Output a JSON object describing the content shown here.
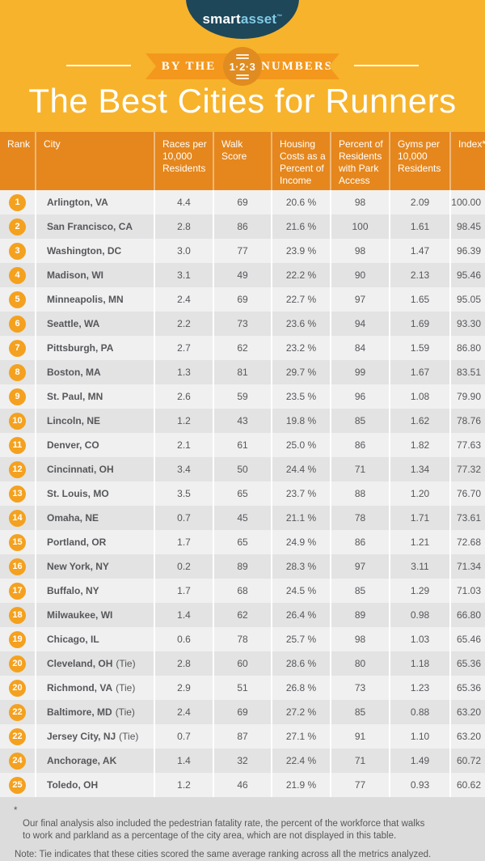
{
  "logo": {
    "smart": "smart",
    "asset": "asset",
    "tm": "™"
  },
  "banner": {
    "by_the": "BY THE",
    "numbers": "NUMBERS",
    "badge": "1·2·3"
  },
  "chart_data": {
    "type": "table",
    "title": "The Best Cities for Runners",
    "columns": [
      "Rank",
      "City",
      "Races per 10,000 Residents",
      "Walk Score",
      "Housing Costs as a Percent of Income",
      "Percent of Residents with Park Access",
      "Gyms per 10,000 Residents",
      "Index*"
    ],
    "rows": [
      {
        "rank": "1",
        "city": "Arlington, VA",
        "tie": "",
        "races": "4.4",
        "walk": "69",
        "housing": "20.6 %",
        "park": "98",
        "gyms": "2.09",
        "index": "100.00"
      },
      {
        "rank": "2",
        "city": "San Francisco, CA",
        "tie": "",
        "races": "2.8",
        "walk": "86",
        "housing": "21.6 %",
        "park": "100",
        "gyms": "1.61",
        "index": "98.45"
      },
      {
        "rank": "3",
        "city": "Washington, DC",
        "tie": "",
        "races": "3.0",
        "walk": "77",
        "housing": "23.9 %",
        "park": "98",
        "gyms": "1.47",
        "index": "96.39"
      },
      {
        "rank": "4",
        "city": "Madison, WI",
        "tie": "",
        "races": "3.1",
        "walk": "49",
        "housing": "22.2 %",
        "park": "90",
        "gyms": "2.13",
        "index": "95.46"
      },
      {
        "rank": "5",
        "city": "Minneapolis, MN",
        "tie": "",
        "races": "2.4",
        "walk": "69",
        "housing": "22.7 %",
        "park": "97",
        "gyms": "1.65",
        "index": "95.05"
      },
      {
        "rank": "6",
        "city": "Seattle, WA",
        "tie": "",
        "races": "2.2",
        "walk": "73",
        "housing": "23.6 %",
        "park": "94",
        "gyms": "1.69",
        "index": "93.30"
      },
      {
        "rank": "7",
        "city": "Pittsburgh, PA",
        "tie": "",
        "races": "2.7",
        "walk": "62",
        "housing": "23.2 %",
        "park": "84",
        "gyms": "1.59",
        "index": "86.80"
      },
      {
        "rank": "8",
        "city": "Boston, MA",
        "tie": "",
        "races": "1.3",
        "walk": "81",
        "housing": "29.7 %",
        "park": "99",
        "gyms": "1.67",
        "index": "83.51"
      },
      {
        "rank": "9",
        "city": "St. Paul, MN",
        "tie": "",
        "races": "2.6",
        "walk": "59",
        "housing": "23.5 %",
        "park": "96",
        "gyms": "1.08",
        "index": "79.90"
      },
      {
        "rank": "10",
        "city": "Lincoln, NE",
        "tie": "",
        "races": "1.2",
        "walk": "43",
        "housing": "19.8 %",
        "park": "85",
        "gyms": "1.62",
        "index": "78.76"
      },
      {
        "rank": "11",
        "city": "Denver, CO",
        "tie": "",
        "races": "2.1",
        "walk": "61",
        "housing": "25.0 %",
        "park": "86",
        "gyms": "1.82",
        "index": "77.63"
      },
      {
        "rank": "12",
        "city": "Cincinnati, OH",
        "tie": "",
        "races": "3.4",
        "walk": "50",
        "housing": "24.4 %",
        "park": "71",
        "gyms": "1.34",
        "index": "77.32"
      },
      {
        "rank": "13",
        "city": "St. Louis, MO",
        "tie": "",
        "races": "3.5",
        "walk": "65",
        "housing": "23.7 %",
        "park": "88",
        "gyms": "1.20",
        "index": "76.70"
      },
      {
        "rank": "14",
        "city": "Omaha, NE",
        "tie": "",
        "races": "0.7",
        "walk": "45",
        "housing": "21.1 %",
        "park": "78",
        "gyms": "1.71",
        "index": "73.61"
      },
      {
        "rank": "15",
        "city": "Portland, OR",
        "tie": "",
        "races": "1.7",
        "walk": "65",
        "housing": "24.9 %",
        "park": "86",
        "gyms": "1.21",
        "index": "72.68"
      },
      {
        "rank": "16",
        "city": "New York, NY",
        "tie": "",
        "races": "0.2",
        "walk": "89",
        "housing": "28.3 %",
        "park": "97",
        "gyms": "3.11",
        "index": "71.34"
      },
      {
        "rank": "17",
        "city": "Buffalo, NY",
        "tie": "",
        "races": "1.7",
        "walk": "68",
        "housing": "24.5 %",
        "park": "85",
        "gyms": "1.29",
        "index": "71.03"
      },
      {
        "rank": "18",
        "city": "Milwaukee, WI",
        "tie": "",
        "races": "1.4",
        "walk": "62",
        "housing": "26.4 %",
        "park": "89",
        "gyms": "0.98",
        "index": "66.80"
      },
      {
        "rank": "19",
        "city": "Chicago, IL",
        "tie": "",
        "races": "0.6",
        "walk": "78",
        "housing": "25.7 %",
        "park": "98",
        "gyms": "1.03",
        "index": "65.46"
      },
      {
        "rank": "20",
        "city": "Cleveland, OH",
        "tie": "(Tie)",
        "races": "2.8",
        "walk": "60",
        "housing": "28.6 %",
        "park": "80",
        "gyms": "1.18",
        "index": "65.36"
      },
      {
        "rank": "20",
        "city": "Richmond, VA",
        "tie": "(Tie)",
        "races": "2.9",
        "walk": "51",
        "housing": "26.8 %",
        "park": "73",
        "gyms": "1.23",
        "index": "65.36"
      },
      {
        "rank": "22",
        "city": "Baltimore, MD",
        "tie": "(Tie)",
        "races": "2.4",
        "walk": "69",
        "housing": "27.2 %",
        "park": "85",
        "gyms": "0.88",
        "index": "63.20"
      },
      {
        "rank": "22",
        "city": "Jersey City, NJ",
        "tie": "(Tie)",
        "races": "0.7",
        "walk": "87",
        "housing": "27.1 %",
        "park": "91",
        "gyms": "1.10",
        "index": "63.20"
      },
      {
        "rank": "24",
        "city": "Anchorage, AK",
        "tie": "",
        "races": "1.4",
        "walk": "32",
        "housing": "22.4 %",
        "park": "71",
        "gyms": "1.49",
        "index": "60.72"
      },
      {
        "rank": "25",
        "city": "Toledo, OH",
        "tie": "",
        "races": "1.2",
        "walk": "46",
        "housing": "21.9 %",
        "park": "77",
        "gyms": "0.93",
        "index": "60.62"
      }
    ]
  },
  "footnotes": {
    "star": "*",
    "asterisk": "Our final analysis also included the pedestrian fatality rate, the percent of the workforce that walks\nto work and parkland as a percentage of the city area, which are not displayed in this table.",
    "note": "Note: Tie indicates that these cities scored the same average ranking across all the metrics analyzed."
  },
  "colors": {
    "background_yellow": "#F7B32B",
    "ribbon_orange": "#F3981D",
    "badge_orange": "#E08C20",
    "header_orange": "#E5871D",
    "rank_badge_orange": "#F4A11F",
    "logo_navy": "#1E4759",
    "logo_asset_blue": "#82CCE8",
    "row_light": "#F0F0F0",
    "row_dark": "#E3E3E3",
    "footer_gray": "#DCDCDC",
    "text_dark": "#56575B"
  }
}
